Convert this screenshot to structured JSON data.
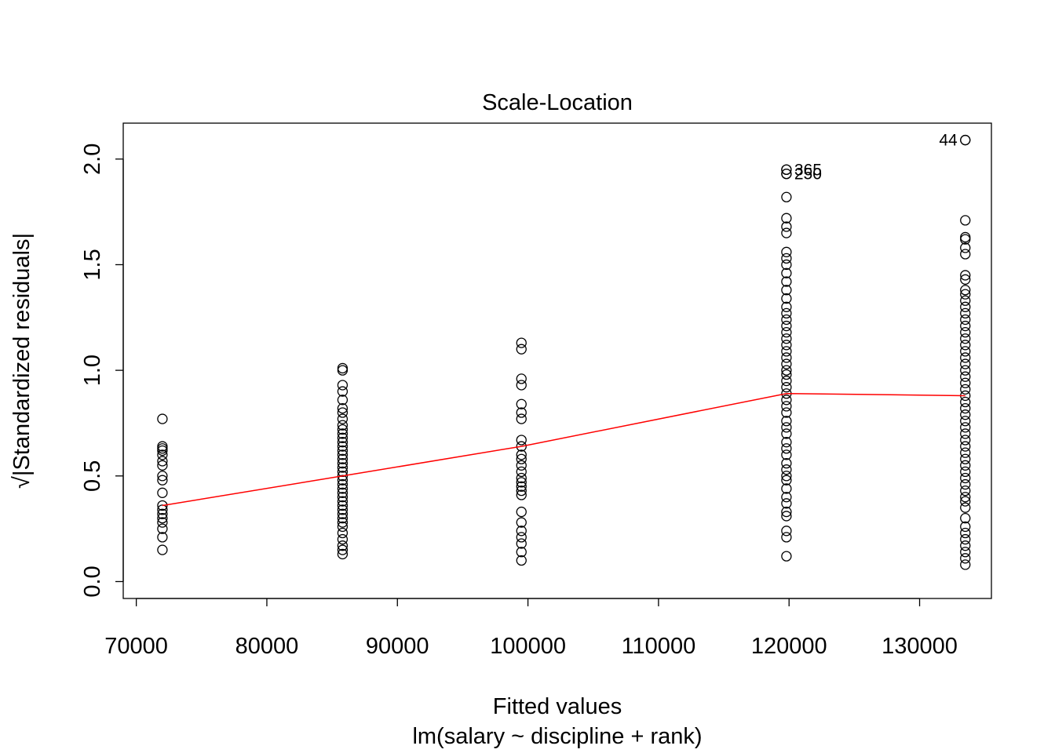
{
  "chart_data": {
    "type": "scatter",
    "title": "Scale-Location",
    "xlabel": "Fitted values",
    "xsublabel": "lm(salary ~ discipline + rank)",
    "ylabel": "√|Standardized residuals|",
    "xlim": [
      69000,
      135500
    ],
    "ylim": [
      -0.08,
      2.17
    ],
    "xticks": [
      70000,
      80000,
      90000,
      100000,
      110000,
      120000,
      130000
    ],
    "yticks": [
      "0.0",
      "0.5",
      "1.0",
      "1.5",
      "2.0"
    ],
    "grid": false,
    "colors": {
      "points": "#000000",
      "smoother": "#ff0000"
    },
    "groups": [
      {
        "x": 72000,
        "y": [
          0.15,
          0.21,
          0.25,
          0.28,
          0.3,
          0.32,
          0.34,
          0.36,
          0.42,
          0.48,
          0.5,
          0.55,
          0.57,
          0.6,
          0.62,
          0.63,
          0.64,
          0.77
        ]
      },
      {
        "x": 85800,
        "y": [
          0.13,
          0.15,
          0.17,
          0.2,
          0.23,
          0.26,
          0.28,
          0.3,
          0.32,
          0.34,
          0.36,
          0.38,
          0.4,
          0.42,
          0.44,
          0.46,
          0.48,
          0.5,
          0.52,
          0.54,
          0.56,
          0.58,
          0.6,
          0.62,
          0.64,
          0.66,
          0.68,
          0.7,
          0.72,
          0.74,
          0.77,
          0.8,
          0.82,
          0.86,
          0.9,
          0.93,
          1.0,
          1.01
        ]
      },
      {
        "x": 99500,
        "y": [
          0.1,
          0.14,
          0.18,
          0.21,
          0.24,
          0.28,
          0.33,
          0.41,
          0.43,
          0.45,
          0.47,
          0.49,
          0.52,
          0.55,
          0.58,
          0.6,
          0.64,
          0.67,
          0.77,
          0.8,
          0.84,
          0.93,
          0.96,
          1.1,
          1.13
        ]
      },
      {
        "x": 119800,
        "y": [
          0.12,
          0.21,
          0.24,
          0.31,
          0.33,
          0.37,
          0.4,
          0.44,
          0.48,
          0.5,
          0.53,
          0.56,
          0.6,
          0.63,
          0.66,
          0.7,
          0.73,
          0.76,
          0.8,
          0.83,
          0.86,
          0.89,
          0.92,
          0.95,
          0.98,
          1.0,
          1.03,
          1.06,
          1.09,
          1.12,
          1.15,
          1.18,
          1.21,
          1.24,
          1.27,
          1.3,
          1.34,
          1.38,
          1.42,
          1.46,
          1.5,
          1.53,
          1.56,
          1.65,
          1.68,
          1.72,
          1.82,
          1.93,
          1.95
        ]
      },
      {
        "x": 133500,
        "y": [
          0.08,
          0.11,
          0.14,
          0.17,
          0.2,
          0.23,
          0.26,
          0.3,
          0.35,
          0.38,
          0.4,
          0.43,
          0.46,
          0.49,
          0.52,
          0.55,
          0.58,
          0.61,
          0.64,
          0.67,
          0.7,
          0.73,
          0.76,
          0.79,
          0.82,
          0.85,
          0.88,
          0.91,
          0.94,
          0.97,
          1.0,
          1.03,
          1.06,
          1.09,
          1.12,
          1.15,
          1.18,
          1.21,
          1.24,
          1.27,
          1.3,
          1.33,
          1.36,
          1.38,
          1.43,
          1.45,
          1.55,
          1.58,
          1.62,
          1.63,
          1.71,
          2.09
        ]
      }
    ],
    "labeled_points": [
      {
        "label": "44",
        "x": 133500,
        "y": 2.09,
        "side": "left"
      },
      {
        "label": "365",
        "x": 119800,
        "y": 1.95,
        "side": "right"
      },
      {
        "label": "250",
        "x": 119800,
        "y": 1.93,
        "side": "right"
      }
    ],
    "smoother": {
      "x": [
        72000,
        85800,
        99500,
        119800,
        133500
      ],
      "y": [
        0.36,
        0.5,
        0.64,
        0.89,
        0.88
      ]
    }
  }
}
